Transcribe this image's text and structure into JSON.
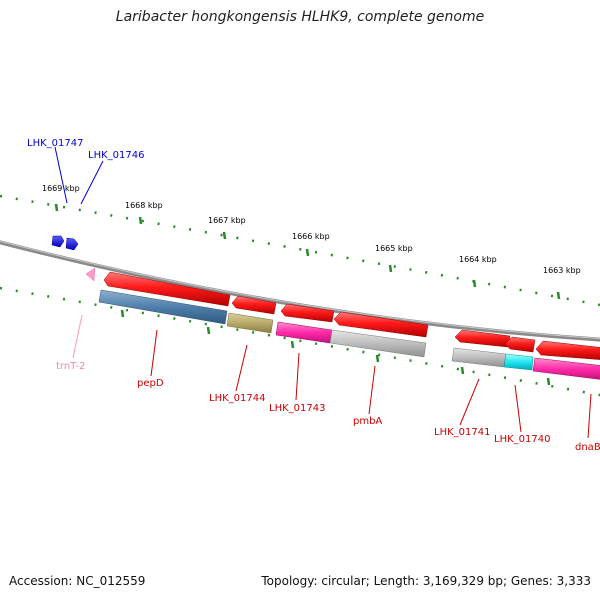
{
  "title": "Laribacter hongkongensis HLHK9, complete genome",
  "footer": {
    "accession": "Accession: NC_012559",
    "topology": "Topology: circular; Length: 3,169,329 bp; Genes: 3,333"
  },
  "ruler": {
    "tick_labels": [
      "1669 kbp",
      "1668 kbp",
      "1667 kbp",
      "1666 kbp",
      "1665 kbp",
      "1664 kbp",
      "1663 kbp"
    ]
  },
  "colors": {
    "cds": "#ff0000",
    "trna": "#ff88c0",
    "forward_label": "#0000cc",
    "reverse_label": "#cc0000",
    "trna_label": "#ee88aa",
    "tick": "#228822",
    "backbone": "#888888"
  },
  "features": {
    "forward": [
      {
        "name": "LHK_01747"
      },
      {
        "name": "LHK_01746"
      }
    ],
    "reverse": [
      {
        "name": "trnT-2"
      },
      {
        "name": "pepD"
      },
      {
        "name": "LHK_01744"
      },
      {
        "name": "LHK_01743"
      },
      {
        "name": "pmbA"
      },
      {
        "name": "LHK_01741"
      },
      {
        "name": "LHK_01740"
      },
      {
        "name": "dnaB"
      }
    ]
  }
}
